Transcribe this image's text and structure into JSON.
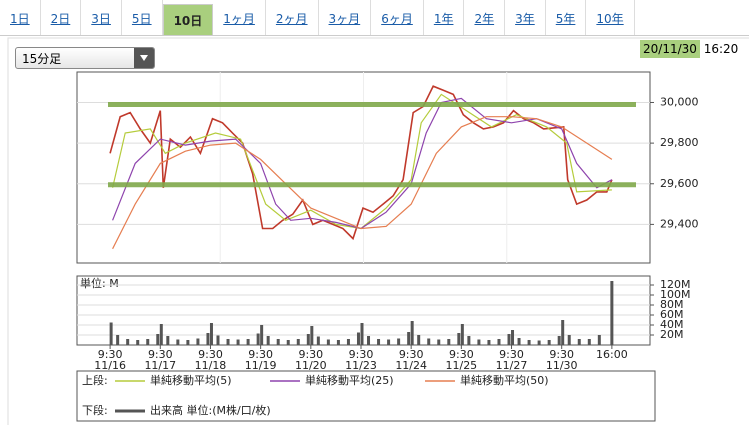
{
  "tabs": [
    "1日",
    "2日",
    "3日",
    "5日",
    "10日",
    "1ヶ月",
    "2ヶ月",
    "3ヶ月",
    "6ヶ月",
    "1年",
    "2年",
    "3年",
    "5年",
    "10年"
  ],
  "active_tab": 4,
  "dropdown": "15分足",
  "date": "20/11/30",
  "time": "16:20",
  "legend_upper": "上段:",
  "legend_lower": "下段:",
  "chart_data": [
    {
      "type": "line",
      "xlim": [
        -0.66,
        10.76
      ],
      "ylim": [
        29210,
        30150
      ],
      "yticks": [
        {
          "value": 29400,
          "label": "29,400"
        },
        {
          "value": 29600,
          "label": "29,600"
        },
        {
          "value": 29800,
          "label": "29,800"
        },
        {
          "value": 30000,
          "label": "30,000"
        }
      ],
      "hlines": [
        29990,
        29595
      ],
      "hline_color": "#7fa84a",
      "series": [
        {
          "color": "#c0392b",
          "x": [
            0,
            0.2,
            0.4,
            0.6,
            0.8,
            1.0,
            1.06,
            1.2,
            1.4,
            1.6,
            1.8,
            2.04,
            2.24,
            2.44,
            2.64,
            2.84,
            3.04,
            3.24,
            3.44,
            3.64,
            3.84,
            4.04,
            4.24,
            4.44,
            4.64,
            4.84,
            5.04,
            5.24,
            5.44,
            5.64,
            5.84,
            6.04,
            6.24,
            6.44,
            6.64,
            6.84,
            7.04,
            7.24,
            7.44,
            7.64,
            7.84,
            8.04,
            8.24,
            8.44,
            8.64,
            9.04,
            9.12,
            9.3,
            9.5,
            9.7,
            9.9,
            10.0
          ],
          "values": [
            29750,
            29930,
            29950,
            29870,
            29800,
            29960,
            29580,
            29820,
            29780,
            29830,
            29750,
            29920,
            29900,
            29850,
            29800,
            29650,
            29380,
            29380,
            29420,
            29450,
            29520,
            29400,
            29420,
            29400,
            29380,
            29330,
            29480,
            29460,
            29500,
            29540,
            29620,
            29950,
            29980,
            30080,
            30060,
            30040,
            29940,
            29900,
            29870,
            29880,
            29900,
            29960,
            29920,
            29900,
            29870,
            29880,
            29620,
            29500,
            29520,
            29560,
            29560,
            29620
          ]
        },
        {
          "name": "単純移動平均(5)",
          "color": "#b5cc3c",
          "x": [
            0.05,
            0.3,
            0.8,
            1.1,
            1.5,
            2.1,
            2.6,
            3.1,
            3.5,
            4,
            4.5,
            5,
            5.5,
            6,
            6.2,
            6.6,
            7.1,
            7.6,
            8.1,
            8.7,
            9.1,
            9.3,
            10
          ],
          "values": [
            29580,
            29850,
            29870,
            29750,
            29800,
            29850,
            29820,
            29500,
            29420,
            29470,
            29400,
            29380,
            29480,
            29620,
            29900,
            30040,
            29960,
            29880,
            29940,
            29880,
            29800,
            29560,
            29570
          ]
        },
        {
          "name": "単純移動平均(25)",
          "color": "#8e44ad",
          "x": [
            0.05,
            0.5,
            1,
            1.5,
            2,
            2.5,
            3,
            3.3,
            3.6,
            4,
            4.5,
            5,
            5.5,
            6,
            6.3,
            6.6,
            7,
            7.5,
            8,
            8.5,
            9,
            9.3,
            9.7,
            10
          ],
          "values": [
            29420,
            29700,
            29820,
            29790,
            29810,
            29820,
            29700,
            29500,
            29420,
            29430,
            29410,
            29380,
            29460,
            29600,
            29850,
            30000,
            30020,
            29920,
            29900,
            29920,
            29870,
            29700,
            29580,
            29620
          ]
        },
        {
          "name": "単純移動平均(50)",
          "color": "#e67e51",
          "x": [
            0.05,
            0.5,
            1,
            1.5,
            2,
            2.5,
            3,
            3.5,
            4,
            4.5,
            5,
            5.5,
            6,
            6.5,
            7,
            7.5,
            8,
            8.5,
            9,
            9.5,
            10
          ],
          "values": [
            29280,
            29500,
            29700,
            29760,
            29790,
            29800,
            29720,
            29600,
            29480,
            29430,
            29380,
            29390,
            29500,
            29750,
            29880,
            29930,
            29930,
            29920,
            29880,
            29800,
            29720
          ]
        }
      ]
    },
    {
      "type": "bar",
      "xlim": [
        -0.66,
        10.76
      ],
      "ylim": [
        0,
        138
      ],
      "unit_label": "単位: M",
      "yticks": [
        {
          "value": 20,
          "label": "20M"
        },
        {
          "value": 40,
          "label": "40M"
        },
        {
          "value": 60,
          "label": "60M"
        },
        {
          "value": 80,
          "label": "80M"
        },
        {
          "value": 100,
          "label": "100M"
        },
        {
          "value": 120,
          "label": "120M"
        }
      ],
      "xticks": [
        {
          "value": 0,
          "label": "9:30"
        },
        {
          "value": 1,
          "label": "9:30"
        },
        {
          "value": 2,
          "label": "9:30"
        },
        {
          "value": 3,
          "label": "9:30"
        },
        {
          "value": 4,
          "label": "9:30"
        },
        {
          "value": 5,
          "label": "9:30"
        },
        {
          "value": 6,
          "label": "9:30"
        },
        {
          "value": 7,
          "label": "9:30"
        },
        {
          "value": 8,
          "label": "9:30"
        },
        {
          "value": 9,
          "label": "9:30"
        },
        {
          "value": 10,
          "label": "16:00"
        }
      ],
      "xtick_dates": [
        "11/16",
        "11/17",
        "11/18",
        "11/19",
        "11/20",
        "11/23",
        "11/24",
        "11/25",
        "11/27",
        "11/30",
        null
      ],
      "series": [
        {
          "name": "出来高 単位:(M株/口/枚)",
          "color": "#555555",
          "x": [
            0.02,
            0.15,
            0.35,
            0.55,
            0.75,
            0.95,
            1.02,
            1.15,
            1.35,
            1.55,
            1.75,
            1.95,
            2.02,
            2.15,
            2.35,
            2.55,
            2.75,
            2.95,
            3.02,
            3.15,
            3.35,
            3.55,
            3.75,
            3.95,
            4.02,
            4.15,
            4.35,
            4.55,
            4.75,
            4.95,
            5.02,
            5.15,
            5.35,
            5.55,
            5.75,
            5.95,
            6.02,
            6.15,
            6.35,
            6.55,
            6.75,
            6.95,
            7.02,
            7.15,
            7.35,
            7.55,
            7.75,
            7.95,
            8.02,
            8.15,
            8.35,
            8.55,
            8.75,
            8.95,
            9.02,
            9.15,
            9.35,
            9.55,
            9.75,
            10.0
          ],
          "values": [
            45,
            20,
            12,
            10,
            12,
            22,
            42,
            18,
            11,
            10,
            13,
            24,
            44,
            19,
            12,
            11,
            12,
            23,
            40,
            18,
            12,
            10,
            12,
            22,
            38,
            17,
            11,
            10,
            12,
            25,
            44,
            18,
            12,
            11,
            13,
            26,
            48,
            20,
            13,
            11,
            12,
            24,
            42,
            18,
            11,
            10,
            12,
            22,
            30,
            14,
            10,
            9,
            10,
            18,
            50,
            20,
            12,
            12,
            20,
            128
          ]
        }
      ]
    }
  ]
}
